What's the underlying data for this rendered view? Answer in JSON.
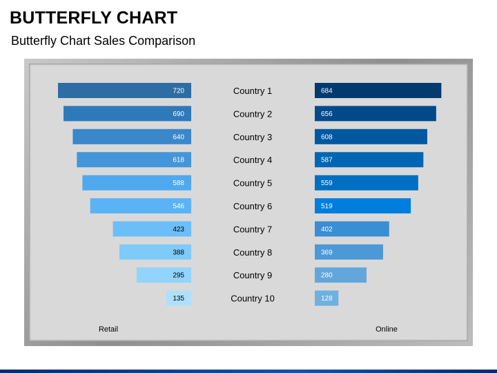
{
  "header": {
    "title": "BUTTERFLY CHART",
    "subtitle": "Butterfly Chart Sales Comparison"
  },
  "chart_data": {
    "type": "bar",
    "categories": [
      "Country 1",
      "Country 2",
      "Country 3",
      "Country 4",
      "Country 5",
      "Country 6",
      "Country 7",
      "Country 8",
      "Country 9",
      "Country 10"
    ],
    "series": [
      {
        "name": "Retail",
        "values": [
          720,
          690,
          640,
          618,
          588,
          546,
          423,
          388,
          295,
          135
        ],
        "colors": [
          "#2e6da4",
          "#2e79b9",
          "#3a87c9",
          "#4496d8",
          "#4fa9ef",
          "#5bb3f5",
          "#6bbef7",
          "#7ecaf9",
          "#92d4fb",
          "#aee0fc"
        ]
      },
      {
        "name": "Online",
        "values": [
          684,
          656,
          608,
          587,
          559,
          519,
          402,
          369,
          280,
          128
        ],
        "colors": [
          "#003a6e",
          "#004a8a",
          "#0058a0",
          "#0066b4",
          "#006fc2",
          "#007ede",
          "#3a8ed3",
          "#4d98d6",
          "#63a6db",
          "#6fb0e0"
        ]
      }
    ],
    "orientation": "horizontal",
    "layout": "butterfly",
    "xlim": [
      0,
      720
    ],
    "data_labels": true,
    "grid": false,
    "legend": "bottom"
  }
}
